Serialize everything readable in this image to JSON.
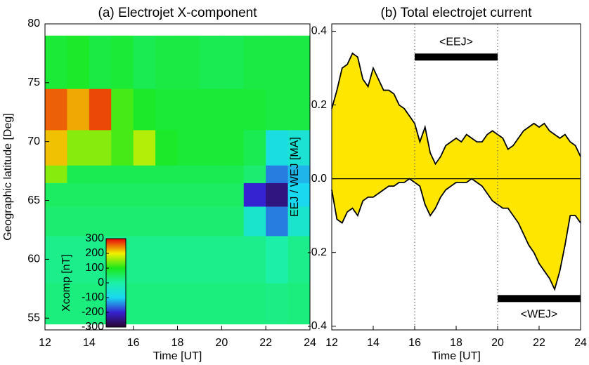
{
  "chart_data": [
    {
      "type": "heatmap",
      "title": "(a) Electrojet X-component",
      "xlabel": "Time [UT]",
      "ylabel": "Geographic latitude [Deg]",
      "x": [
        12,
        13,
        14,
        15,
        16,
        17,
        18,
        19,
        20,
        21,
        22,
        23,
        24
      ],
      "y": [
        54.5,
        58,
        62,
        64.5,
        66.5,
        68,
        71,
        74.5,
        79
      ],
      "z": [
        [
          30,
          30,
          30,
          30,
          30,
          30,
          30,
          30,
          30,
          30,
          25,
          30
        ],
        [
          20,
          20,
          20,
          20,
          20,
          20,
          20,
          20,
          20,
          20,
          0,
          20
        ],
        [
          40,
          40,
          40,
          40,
          40,
          40,
          40,
          40,
          40,
          -50,
          -150,
          -50
        ],
        [
          50,
          50,
          50,
          50,
          50,
          50,
          50,
          50,
          50,
          -200,
          -250,
          -100
        ],
        [
          150,
          60,
          60,
          60,
          60,
          60,
          60,
          60,
          60,
          40,
          -150,
          -120
        ],
        [
          220,
          150,
          150,
          120,
          170,
          90,
          80,
          80,
          80,
          60,
          -80,
          -60
        ],
        [
          260,
          230,
          270,
          120,
          90,
          80,
          80,
          80,
          80,
          80,
          70,
          70
        ],
        [
          80,
          90,
          70,
          80,
          60,
          70,
          70,
          60,
          60,
          70,
          70,
          70
        ]
      ],
      "xlim": [
        12,
        24
      ],
      "ylim": [
        54,
        80
      ],
      "xticks": [
        12,
        14,
        16,
        18,
        20,
        22,
        24
      ],
      "yticks": [
        55,
        60,
        65,
        70,
        75,
        80
      ],
      "colorbar": {
        "label": "Xcomp [nT]",
        "ticks": [
          -300,
          -200,
          -100,
          0,
          100,
          200,
          300
        ],
        "colors": [
          "#2a0530",
          "#3522d0",
          "#1ad8f0",
          "#1cf0a8",
          "#1be81b",
          "#f2f000",
          "#e8000c"
        ]
      }
    },
    {
      "type": "area",
      "title": "(b) Total electrojet current",
      "xlabel": "Time [UT]",
      "ylabel": "EEJ / WEJ [MA]",
      "x": [
        12,
        12.25,
        12.5,
        12.75,
        13,
        13.25,
        13.5,
        13.75,
        14,
        14.25,
        14.5,
        14.75,
        15,
        15.25,
        15.5,
        15.75,
        16,
        16.25,
        16.5,
        16.75,
        17,
        17.25,
        17.5,
        17.75,
        18,
        18.25,
        18.5,
        18.75,
        19,
        19.25,
        19.5,
        19.75,
        20,
        20.25,
        20.5,
        20.75,
        21,
        21.25,
        21.5,
        21.75,
        22,
        22.25,
        22.5,
        22.75,
        23,
        23.25,
        23.5,
        23.75,
        24
      ],
      "series": [
        {
          "color": "#000000",
          "fill": "#ffe600",
          "values": [
            0.19,
            0.24,
            0.3,
            0.31,
            0.34,
            0.33,
            0.27,
            0.25,
            0.3,
            0.27,
            0.24,
            0.24,
            0.23,
            0.2,
            0.19,
            0.17,
            0.15,
            0.1,
            0.14,
            0.07,
            0.04,
            0.06,
            0.09,
            0.1,
            0.11,
            0.1,
            0.12,
            0.11,
            0.1,
            0.1,
            0.12,
            0.13,
            0.12,
            0.11,
            0.08,
            0.09,
            0.11,
            0.13,
            0.14,
            0.15,
            0.14,
            0.15,
            0.13,
            0.12,
            0.11,
            0.12,
            0.1,
            0.09,
            0.06
          ]
        },
        {
          "color": "#000000",
          "fill": "#ffe600",
          "values": [
            -0.03,
            -0.11,
            -0.12,
            -0.09,
            -0.08,
            -0.1,
            -0.06,
            -0.05,
            -0.05,
            -0.04,
            -0.03,
            -0.02,
            -0.02,
            -0.01,
            -0.01,
            0,
            -0.01,
            -0.02,
            -0.07,
            -0.1,
            -0.08,
            -0.05,
            -0.03,
            -0.02,
            -0.01,
            -0.01,
            -0.01,
            0,
            -0.01,
            -0.02,
            -0.04,
            -0.06,
            -0.07,
            -0.08,
            -0.08,
            -0.1,
            -0.12,
            -0.15,
            -0.18,
            -0.2,
            -0.23,
            -0.25,
            -0.27,
            -0.3,
            -0.25,
            -0.18,
            -0.1,
            -0.1,
            -0.12
          ]
        }
      ],
      "xlim": [
        12,
        24
      ],
      "ylim": [
        -0.41,
        0.42
      ],
      "xticks": [
        12,
        14,
        16,
        18,
        20,
        22,
        24
      ],
      "yticks": [
        -0.4,
        -0.2,
        {
          "value": 0,
          "label": "0.0"
        },
        0.2,
        0.4
      ],
      "vlines": [
        16,
        20
      ],
      "intervals": [
        {
          "label": "<EEJ>",
          "x": [
            16,
            20
          ],
          "y": 0.33
        },
        {
          "label": "<WEJ>",
          "x": [
            20,
            24
          ],
          "y": -0.325
        }
      ]
    }
  ]
}
